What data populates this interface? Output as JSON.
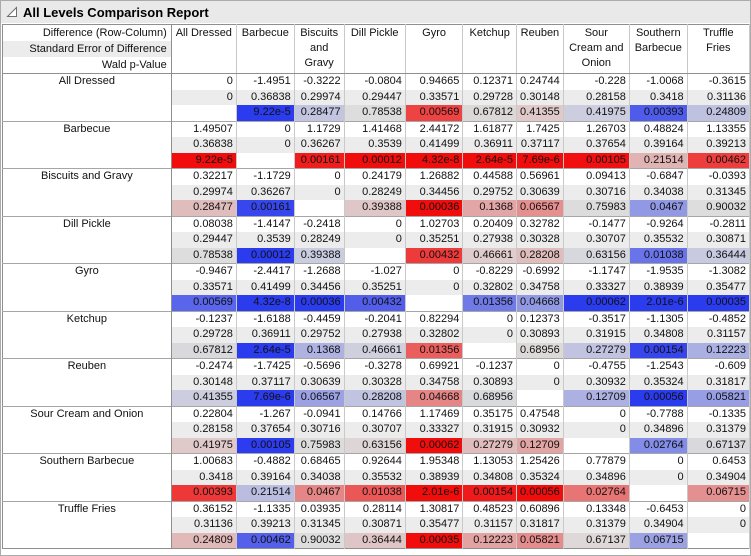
{
  "title": "All Levels Comparison Report",
  "colors": {
    "significant_positive": "#f20d0d",
    "significant_negative": "#2b3bee",
    "neutral_cell": "#dddddd",
    "se_row_bg": "#ececec",
    "title_bar_bg": "#e9e9e9"
  },
  "table": {
    "corner_lines": [
      "Difference (Row-Column)",
      "Standard Error of Difference",
      "Wald p-Value"
    ],
    "columns": [
      "All Dressed",
      "Barbecue",
      "Biscuits and Gravy",
      "Dill Pickle",
      "Gyro",
      "Ketchup",
      "Reuben",
      "Sour Cream and Onion",
      "Southern Barbecue",
      "Truffle Fries"
    ],
    "rows": [
      {
        "label": "All Dressed",
        "diff": [
          "0",
          "-1.4951",
          "-0.3222",
          "-0.0804",
          "0.94665",
          "0.12371",
          "0.24744",
          "-0.228",
          "-1.0068",
          "-0.3615"
        ],
        "se": [
          "0",
          "0.36838",
          "0.29974",
          "0.29447",
          "0.33571",
          "0.29728",
          "0.30148",
          "0.28158",
          "0.3418",
          "0.31136"
        ],
        "p": [
          "",
          "9.22e-5",
          "0.28477",
          "0.78538",
          "0.00569",
          "0.67812",
          "0.41355",
          "0.41975",
          "0.00393",
          "0.24809"
        ]
      },
      {
        "label": "Barbecue",
        "diff": [
          "1.49507",
          "0",
          "1.1729",
          "1.41468",
          "2.44172",
          "1.61877",
          "1.7425",
          "1.26703",
          "0.48824",
          "1.13355"
        ],
        "se": [
          "0.36838",
          "0",
          "0.36267",
          "0.3539",
          "0.41499",
          "0.36911",
          "0.37117",
          "0.37654",
          "0.39164",
          "0.39213"
        ],
        "p": [
          "9.22e-5",
          "",
          "0.00161",
          "0.00012",
          "4.32e-8",
          "2.64e-5",
          "7.69e-6",
          "0.00105",
          "0.21514",
          "0.00462"
        ]
      },
      {
        "label": "Biscuits and Gravy",
        "diff": [
          "0.32217",
          "-1.1729",
          "0",
          "0.24179",
          "1.26882",
          "0.44588",
          "0.56961",
          "0.09413",
          "-0.6847",
          "-0.0393"
        ],
        "se": [
          "0.29974",
          "0.36267",
          "0",
          "0.28249",
          "0.34456",
          "0.29752",
          "0.30639",
          "0.30716",
          "0.34038",
          "0.31345"
        ],
        "p": [
          "0.28477",
          "0.00161",
          "",
          "0.39388",
          "0.00036",
          "0.1368",
          "0.06567",
          "0.75983",
          "0.0467",
          "0.90032"
        ]
      },
      {
        "label": "Dill Pickle",
        "diff": [
          "0.08038",
          "-1.4147",
          "-0.2418",
          "0",
          "1.02703",
          "0.20409",
          "0.32782",
          "-0.1477",
          "-0.9264",
          "-0.2811"
        ],
        "se": [
          "0.29447",
          "0.3539",
          "0.28249",
          "0",
          "0.35251",
          "0.27938",
          "0.30328",
          "0.30707",
          "0.35532",
          "0.30871"
        ],
        "p": [
          "0.78538",
          "0.00012",
          "0.39388",
          "",
          "0.00432",
          "0.46661",
          "0.28208",
          "0.63156",
          "0.01038",
          "0.36444"
        ]
      },
      {
        "label": "Gyro",
        "diff": [
          "-0.9467",
          "-2.4417",
          "-1.2688",
          "-1.027",
          "0",
          "-0.8229",
          "-0.6992",
          "-1.1747",
          "-1.9535",
          "-1.3082"
        ],
        "se": [
          "0.33571",
          "0.41499",
          "0.34456",
          "0.35251",
          "0",
          "0.32802",
          "0.34758",
          "0.33327",
          "0.38939",
          "0.35477"
        ],
        "p": [
          "0.00569",
          "4.32e-8",
          "0.00036",
          "0.00432",
          "",
          "0.01356",
          "0.04668",
          "0.00062",
          "2.01e-6",
          "0.00035"
        ]
      },
      {
        "label": "Ketchup",
        "diff": [
          "-0.1237",
          "-1.6188",
          "-0.4459",
          "-0.2041",
          "0.82294",
          "0",
          "0.12373",
          "-0.3517",
          "-1.1305",
          "-0.4852"
        ],
        "se": [
          "0.29728",
          "0.36911",
          "0.29752",
          "0.27938",
          "0.32802",
          "0",
          "0.30893",
          "0.31915",
          "0.34808",
          "0.31157"
        ],
        "p": [
          "0.67812",
          "2.64e-5",
          "0.1368",
          "0.46661",
          "0.01356",
          "",
          "0.68956",
          "0.27279",
          "0.00154",
          "0.12223"
        ]
      },
      {
        "label": "Reuben",
        "diff": [
          "-0.2474",
          "-1.7425",
          "-0.5696",
          "-0.3278",
          "0.69921",
          "-0.1237",
          "0",
          "-0.4755",
          "-1.2543",
          "-0.609"
        ],
        "se": [
          "0.30148",
          "0.37117",
          "0.30639",
          "0.30328",
          "0.34758",
          "0.30893",
          "0",
          "0.30932",
          "0.35324",
          "0.31817"
        ],
        "p": [
          "0.41355",
          "7.69e-6",
          "0.06567",
          "0.28208",
          "0.04668",
          "0.68956",
          "",
          "0.12709",
          "0.00056",
          "0.05821"
        ]
      },
      {
        "label": "Sour Cream and Onion",
        "diff": [
          "0.22804",
          "-1.267",
          "-0.0941",
          "0.14766",
          "1.17469",
          "0.35175",
          "0.47548",
          "0",
          "-0.7788",
          "-0.1335"
        ],
        "se": [
          "0.28158",
          "0.37654",
          "0.30716",
          "0.30707",
          "0.33327",
          "0.31915",
          "0.30932",
          "0",
          "0.34896",
          "0.31379"
        ],
        "p": [
          "0.41975",
          "0.00105",
          "0.75983",
          "0.63156",
          "0.00062",
          "0.27279",
          "0.12709",
          "",
          "0.02764",
          "0.67137"
        ]
      },
      {
        "label": "Southern Barbecue",
        "diff": [
          "1.00683",
          "-0.4882",
          "0.68465",
          "0.92644",
          "1.95348",
          "1.13053",
          "1.25426",
          "0.77879",
          "0",
          "0.6453"
        ],
        "se": [
          "0.3418",
          "0.39164",
          "0.34038",
          "0.35532",
          "0.38939",
          "0.34808",
          "0.35324",
          "0.34896",
          "0",
          "0.34904"
        ],
        "p": [
          "0.00393",
          "0.21514",
          "0.0467",
          "0.01038",
          "2.01e-6",
          "0.00154",
          "0.00056",
          "0.02764",
          "",
          "0.06715"
        ]
      },
      {
        "label": "Truffle Fries",
        "diff": [
          "0.36152",
          "-1.1335",
          "0.03935",
          "0.28114",
          "1.30817",
          "0.48523",
          "0.60896",
          "0.13348",
          "-0.6453",
          "0"
        ],
        "se": [
          "0.31136",
          "0.39213",
          "0.31345",
          "0.30871",
          "0.35477",
          "0.31157",
          "0.31817",
          "0.31379",
          "0.34904",
          "0"
        ],
        "p": [
          "0.24809",
          "0.00462",
          "0.90032",
          "0.36444",
          "0.00035",
          "0.12223",
          "0.05821",
          "0.67137",
          "0.06715",
          ""
        ]
      }
    ]
  }
}
